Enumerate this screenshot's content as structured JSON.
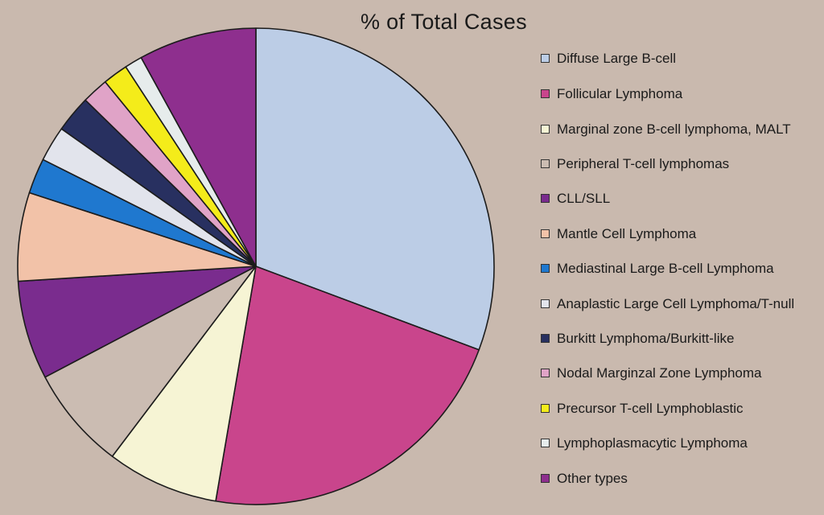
{
  "chart_data": {
    "type": "pie",
    "title": "% of Total Cases",
    "start_angle_deg": 0,
    "direction": "clockwise",
    "slices": [
      {
        "label": "Diffuse Large B-cell",
        "value": 30.7,
        "color": "#bccde6"
      },
      {
        "label": "Follicular Lymphoma",
        "value": 22.0,
        "color": "#c9458c"
      },
      {
        "label": "Marginal zone B-cell lymphoma, MALT",
        "value": 7.6,
        "color": "#f6f4d4"
      },
      {
        "label": "Peripheral T-cell lymphomas",
        "value": 7.0,
        "color": "#cbbcb2"
      },
      {
        "label": "CLL/SLL",
        "value": 6.7,
        "color": "#7a2c8e"
      },
      {
        "label": "Mantle Cell Lymphoma",
        "value": 6.0,
        "color": "#f2c2a8"
      },
      {
        "label": "Mediastinal Large B-cell Lymphoma",
        "value": 2.4,
        "color": "#1f78cf"
      },
      {
        "label": "Anaplastic Large Cell Lymphoma/T-null",
        "value": 2.4,
        "color": "#e2e4ec"
      },
      {
        "label": "Burkitt Lymphoma/Burkitt-like",
        "value": 2.5,
        "color": "#283060"
      },
      {
        "label": "Nodal Marginzal Zone Lymphoma",
        "value": 1.8,
        "color": "#e0a3c7"
      },
      {
        "label": "Precursor T-cell Lymphoblastic",
        "value": 1.7,
        "color": "#f4ec1a"
      },
      {
        "label": "Lymphoplasmacytic Lymphoma",
        "value": 1.2,
        "color": "#e6ecec"
      },
      {
        "label": "Other types",
        "value": 8.0,
        "color": "#8e2f8e"
      }
    ]
  }
}
